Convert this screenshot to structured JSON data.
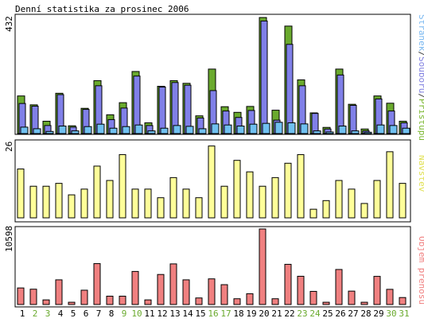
{
  "chart_data": {
    "type": "bar",
    "title": "Denní statistika za prosinec 2006",
    "categories": [
      "1",
      "2",
      "3",
      "4",
      "5",
      "6",
      "7",
      "8",
      "9",
      "10",
      "11",
      "12",
      "13",
      "14",
      "15",
      "16",
      "17",
      "18",
      "19",
      "20",
      "21",
      "22",
      "23",
      "24",
      "25",
      "26",
      "27",
      "28",
      "29",
      "30",
      "31"
    ],
    "weekend_days": [
      "2",
      "3",
      "9",
      "10",
      "16",
      "17",
      "23",
      "24",
      "30",
      "31"
    ],
    "panels": [
      {
        "id": "top",
        "ytick": "432",
        "ylim": [
          0,
          432
        ],
        "legend": [
          {
            "text": "Stránek",
            "color": "#7ab8f0"
          },
          {
            "text": "/",
            "color": "#404040"
          },
          {
            "text": "Souborů",
            "color": "#8080e0"
          },
          {
            "text": "/",
            "color": "#404040"
          },
          {
            "text": "Přístupů",
            "color": "#7cb832"
          }
        ],
        "series": [
          {
            "name": "Přístupů",
            "color": "#6aaa2e",
            "values": [
              140,
              107,
              46,
              150,
              29,
              94,
              197,
              70,
              115,
              231,
              40,
              176,
              197,
              187,
              66,
              240,
              100,
              79,
              101,
              432,
              87,
              400,
              200,
              77,
              23,
              240,
              109,
              17,
              140,
              113,
              46
            ]
          },
          {
            "name": "Souborů",
            "color": "#8080e8",
            "values": [
              112,
              102,
              30,
              145,
              24,
              90,
              178,
              52,
              95,
              214,
              30,
              173,
              190,
              180,
              58,
              160,
              84,
              60,
              86,
              419,
              50,
              332,
              178,
              75,
              17,
              218,
              105,
              10,
              129,
              84,
              40
            ]
          },
          {
            "name": "Stránek",
            "color": "#70c0f0",
            "values": [
              24,
              18,
              8,
              28,
              10,
              26,
              35,
              20,
              26,
              32,
              10,
              20,
              30,
              27,
              18,
              36,
              32,
              28,
              35,
              38,
              42,
              40,
              36,
              10,
              6,
              28,
              10,
              5,
              32,
              30,
              20
            ]
          }
        ]
      },
      {
        "id": "mid",
        "ytick": "26",
        "ylim": [
          0,
          26
        ],
        "legend": [
          {
            "text": "Návštěv",
            "color": "#e0e050"
          }
        ],
        "series": [
          {
            "name": "Návštěv",
            "color": "#ffff99",
            "values": [
              17,
              11,
              11,
              12,
              8,
              10,
              18,
              13,
              22,
              10,
              10,
              7,
              14,
              10,
              7,
              25,
              11,
              20,
              16,
              11,
              14,
              19,
              22,
              3,
              6,
              13,
              10,
              5,
              13,
              23,
              12
            ]
          }
        ]
      },
      {
        "id": "bot",
        "ytick": "10598",
        "ylim": [
          0,
          10598
        ],
        "legend": [
          {
            "text": "Objem přenosu",
            "color": "#f08080"
          }
        ],
        "series": [
          {
            "name": "Objem přenosu",
            "color": "#f08080",
            "values": [
              2325,
              2150,
              650,
              3465,
              320,
              2010,
              5740,
              1170,
              1170,
              4640,
              650,
              4215,
              5700,
              3465,
              920,
              3600,
              2785,
              810,
              1515,
              10598,
              810,
              5640,
              3965,
              1845,
              320,
              4915,
              1880,
              320,
              3950,
              2130,
              980
            ]
          }
        ]
      }
    ]
  }
}
